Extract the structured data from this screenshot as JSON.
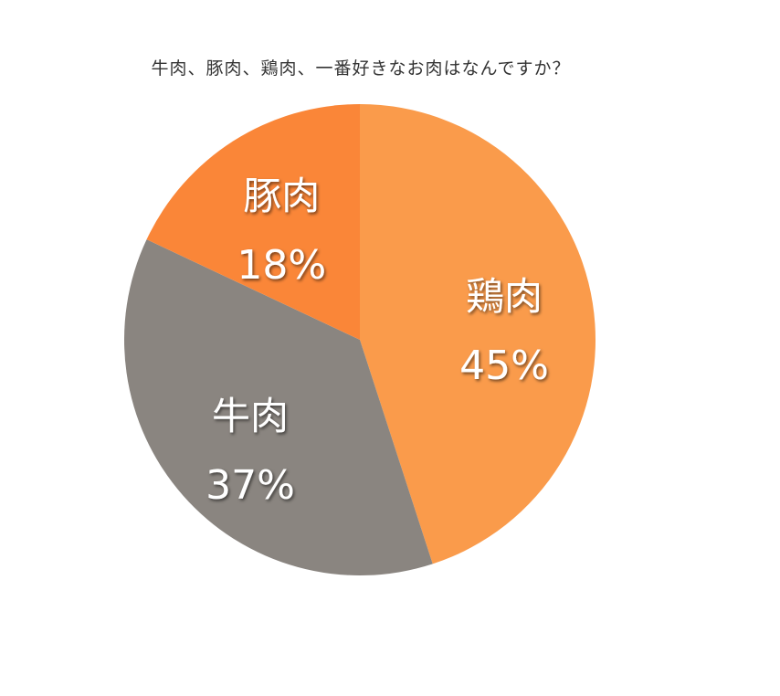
{
  "chart_data": {
    "type": "pie",
    "title": "牛肉、豚肉、鶏肉、一番好きなお肉はなんですか？",
    "start_angle_deg": 0,
    "direction": "clockwise",
    "slices": [
      {
        "label": "鶏肉",
        "value": 45,
        "value_label": "45%",
        "color": "#fa9b4b"
      },
      {
        "label": "牛肉",
        "value": 37,
        "value_label": "37%",
        "color": "#8a8580"
      },
      {
        "label": "豚肉",
        "value": 18,
        "value_label": "18%",
        "color": "#fa8638"
      }
    ],
    "legend": "none",
    "labels_inside": true
  }
}
